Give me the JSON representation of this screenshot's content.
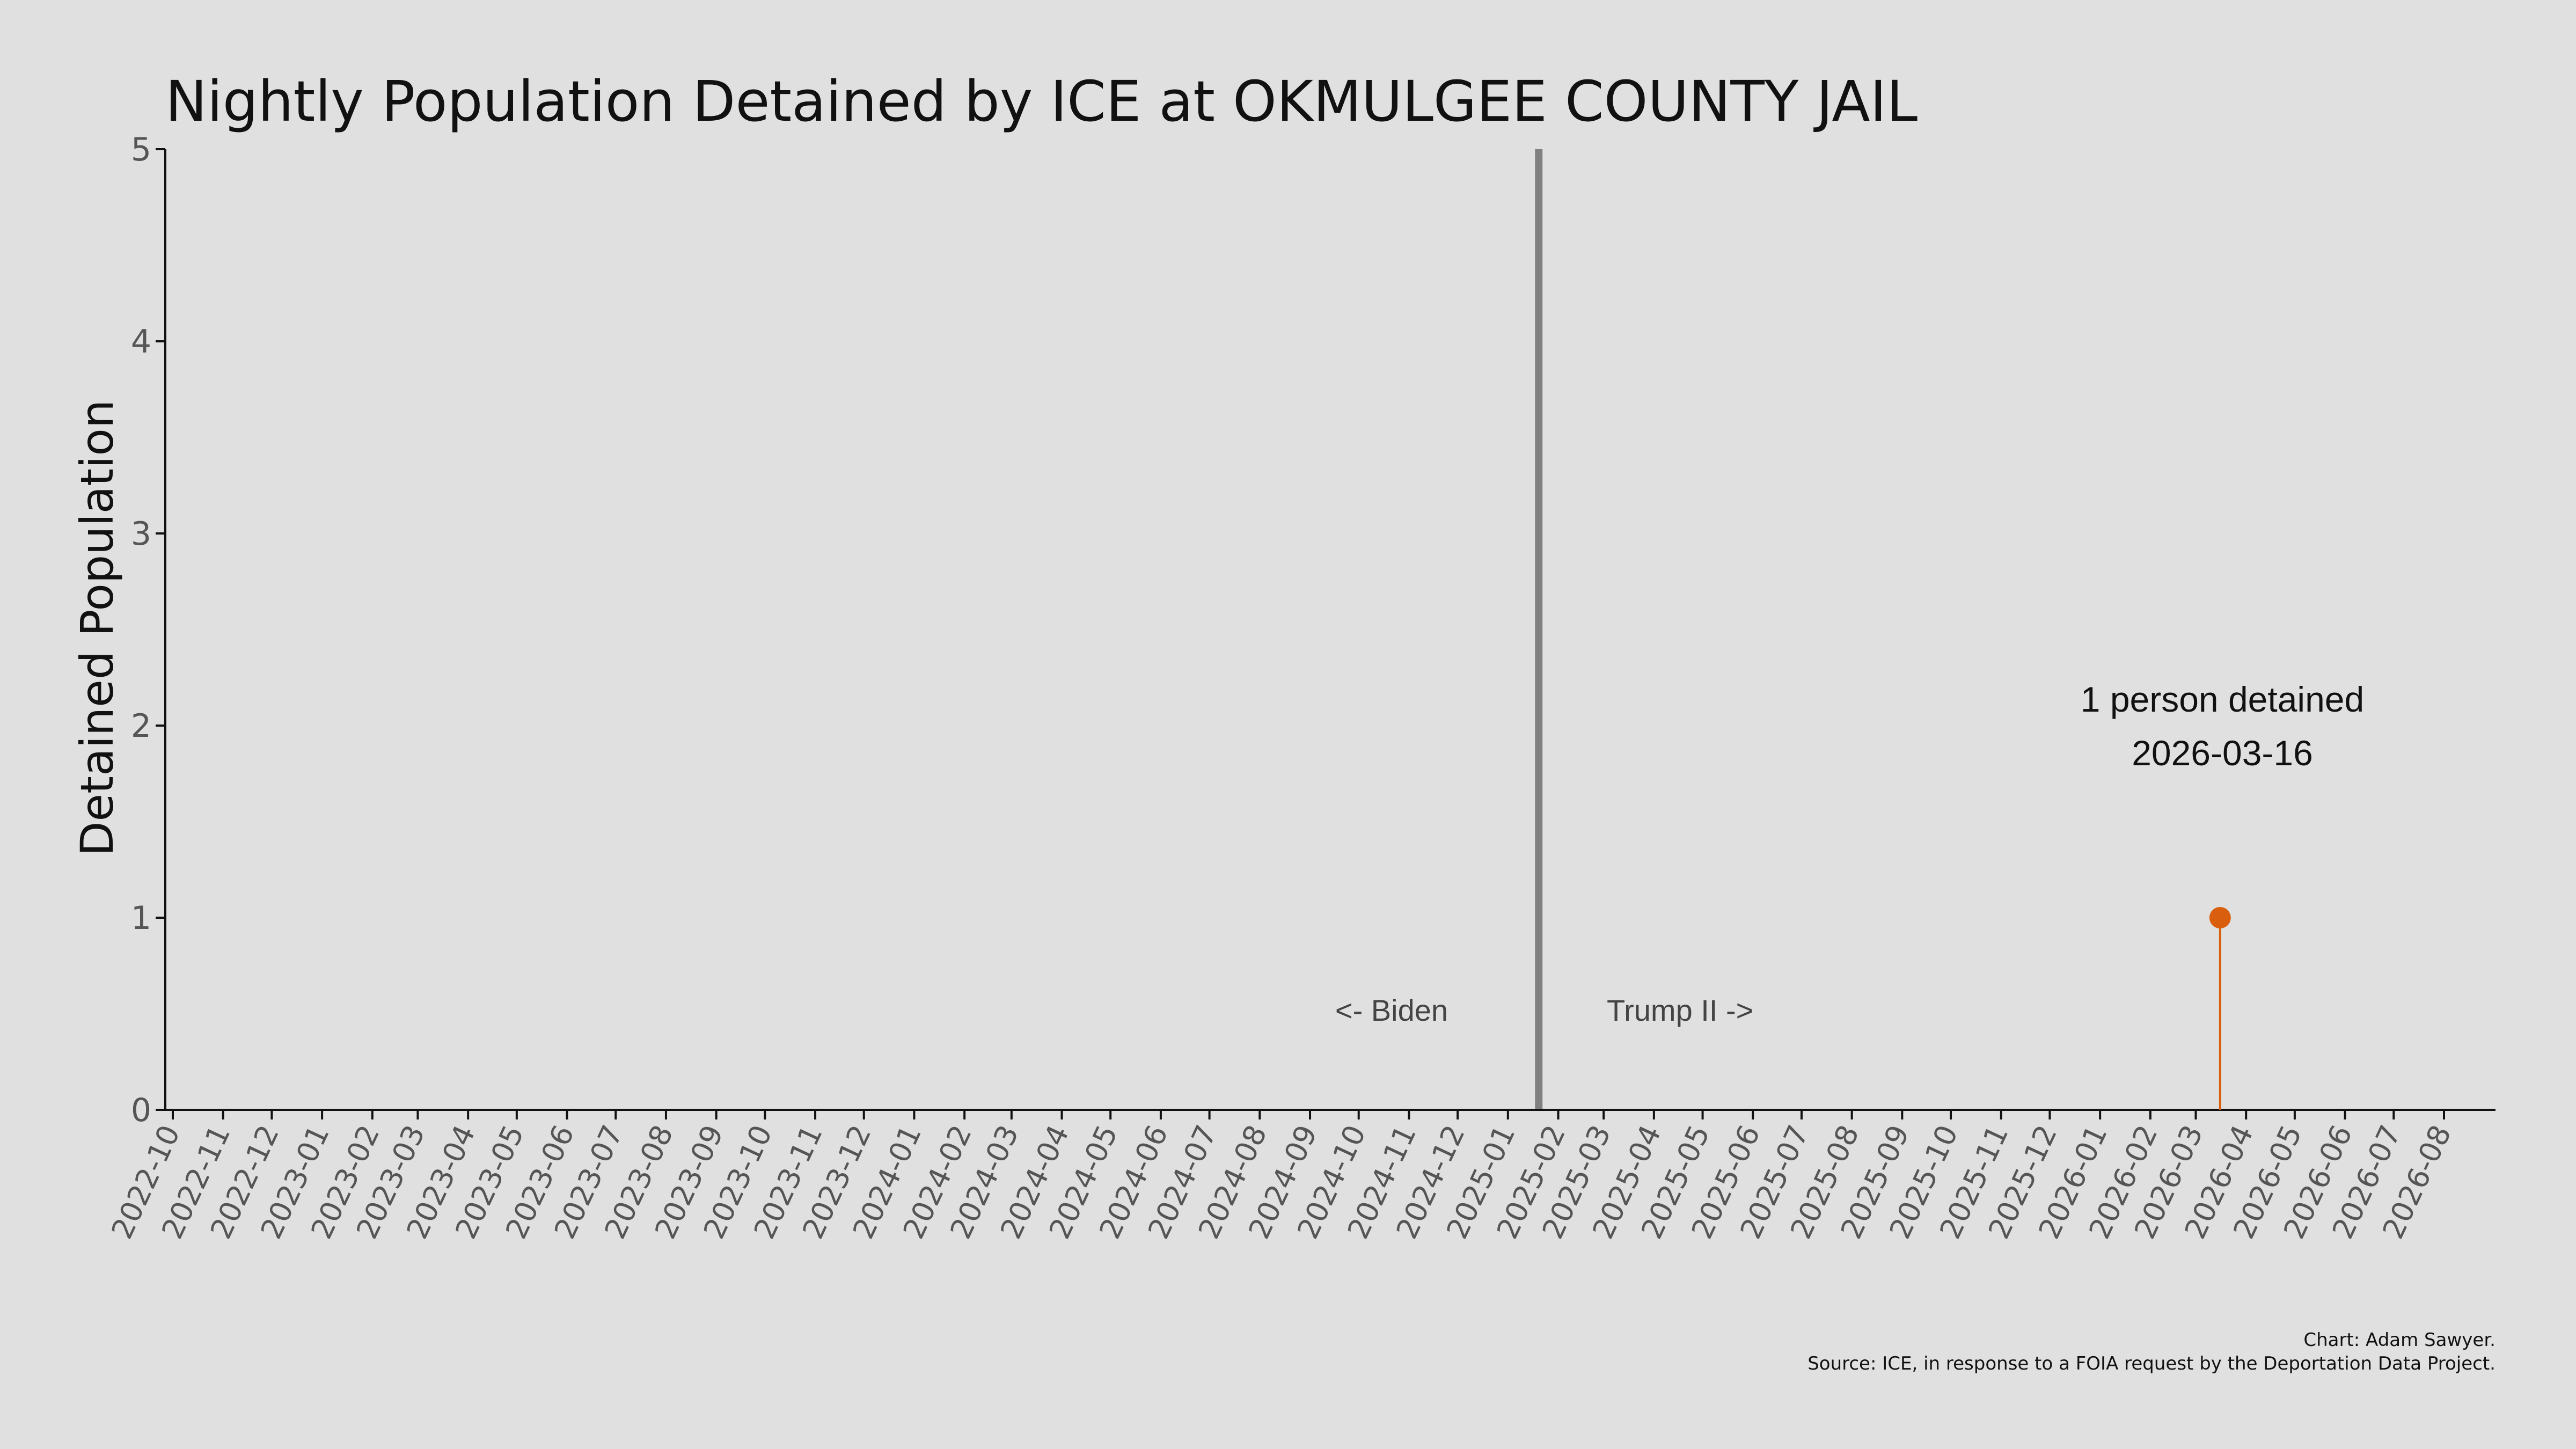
{
  "chart_data": {
    "type": "line",
    "title": "Nightly Population Detained by ICE at OKMULGEE COUNTY JAIL",
    "ylabel": "Detained Population",
    "xlabel": "",
    "ylim": [
      0,
      5
    ],
    "yticks": [
      "0",
      "1",
      "2",
      "3",
      "4",
      "5"
    ],
    "xticks": [
      "2022-10",
      "2022-11",
      "2022-12",
      "2023-01",
      "2023-02",
      "2023-03",
      "2023-04",
      "2023-05",
      "2023-06",
      "2023-07",
      "2023-08",
      "2023-09",
      "2023-10",
      "2023-11",
      "2023-12",
      "2024-01",
      "2024-02",
      "2024-03",
      "2024-04",
      "2024-05",
      "2024-06",
      "2024-07",
      "2024-08",
      "2024-09",
      "2024-10",
      "2024-11",
      "2024-12",
      "2025-01",
      "2025-02",
      "2025-03",
      "2025-04",
      "2025-05",
      "2025-06",
      "2025-07",
      "2025-08",
      "2025-09",
      "2025-10",
      "2025-11",
      "2025-12",
      "2026-01",
      "2026-02",
      "2026-03",
      "2026-04",
      "2026-05",
      "2026-06",
      "2026-07",
      "2026-08"
    ],
    "points": [
      {
        "x": "2026-03-16",
        "y": 1
      }
    ],
    "divider_date": "2025-01-20",
    "grid": false,
    "colors": {
      "point": "#d95f0e",
      "divider": "#808080"
    }
  },
  "annotation": {
    "line1": "1 person detained",
    "line2": "2026-03-16"
  },
  "era_labels": {
    "left": "<- Biden",
    "right": "Trump II ->"
  },
  "credits": {
    "line1": "Chart: Adam Sawyer.",
    "line2": "Source: ICE, in response to a FOIA request by the Deportation Data Project."
  }
}
